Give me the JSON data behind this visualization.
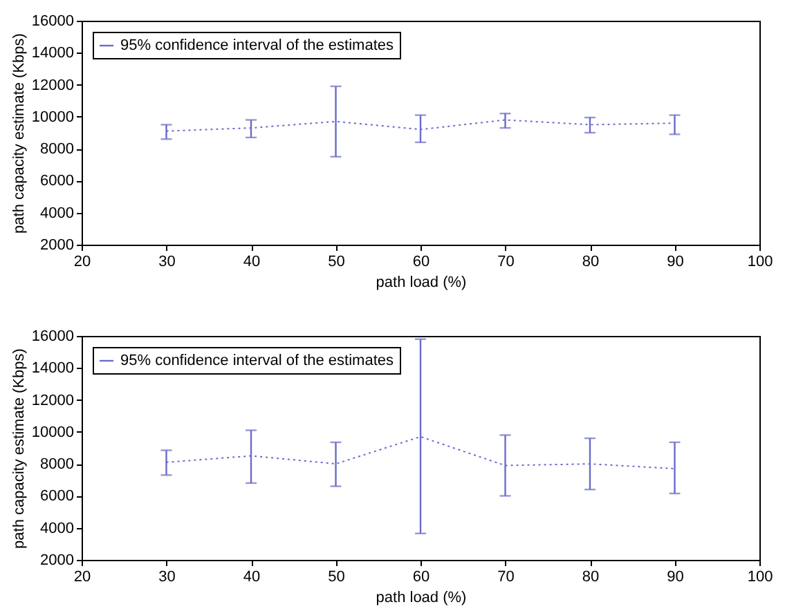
{
  "chart_data": [
    {
      "type": "line",
      "xlabel": "path load (%)",
      "ylabel": "path capacity estimate (Kbps)",
      "x": [
        30,
        40,
        50,
        60,
        70,
        80,
        90
      ],
      "xlim": [
        20,
        100
      ],
      "xticks": [
        20,
        30,
        40,
        50,
        60,
        70,
        80,
        90,
        100
      ],
      "ylim": [
        2000,
        16000
      ],
      "yticks": [
        2000,
        4000,
        6000,
        8000,
        10000,
        12000,
        14000,
        16000
      ],
      "grid": false,
      "legend": "top left",
      "marker": "none",
      "line_style": "dotted",
      "series": [
        {
          "name": "95% confidence interval of the estimates",
          "color": "#6a6acc",
          "values": [
            9100,
            9300,
            9700,
            9200,
            9800,
            9500,
            9600
          ],
          "errors": [
            [
              8600,
              9500
            ],
            [
              8700,
              9800
            ],
            [
              7500,
              11900
            ],
            [
              8400,
              10100
            ],
            [
              9300,
              10200
            ],
            [
              9000,
              9950
            ],
            [
              8900,
              10100
            ]
          ]
        }
      ]
    },
    {
      "type": "line",
      "xlabel": "path load (%)",
      "ylabel": "path capacity estimate (Kbps)",
      "x": [
        30,
        40,
        50,
        60,
        70,
        80,
        90
      ],
      "xlim": [
        20,
        100
      ],
      "xticks": [
        20,
        30,
        40,
        50,
        60,
        70,
        80,
        90,
        100
      ],
      "ylim": [
        2000,
        16000
      ],
      "yticks": [
        2000,
        4000,
        6000,
        8000,
        10000,
        12000,
        14000,
        16000
      ],
      "grid": false,
      "legend": "top left",
      "marker": "none",
      "line_style": "dotted",
      "series": [
        {
          "name": "95% confidence interval of the estimates",
          "color": "#6a6acc",
          "values": [
            8100,
            8500,
            8000,
            9700,
            7900,
            8000,
            7700
          ],
          "errors": [
            [
              7300,
              8850
            ],
            [
              6800,
              10100
            ],
            [
              6600,
              9350
            ],
            [
              3650,
              15800
            ],
            [
              6000,
              9800
            ],
            [
              6400,
              9600
            ],
            [
              6150,
              9350
            ]
          ]
        }
      ]
    }
  ]
}
